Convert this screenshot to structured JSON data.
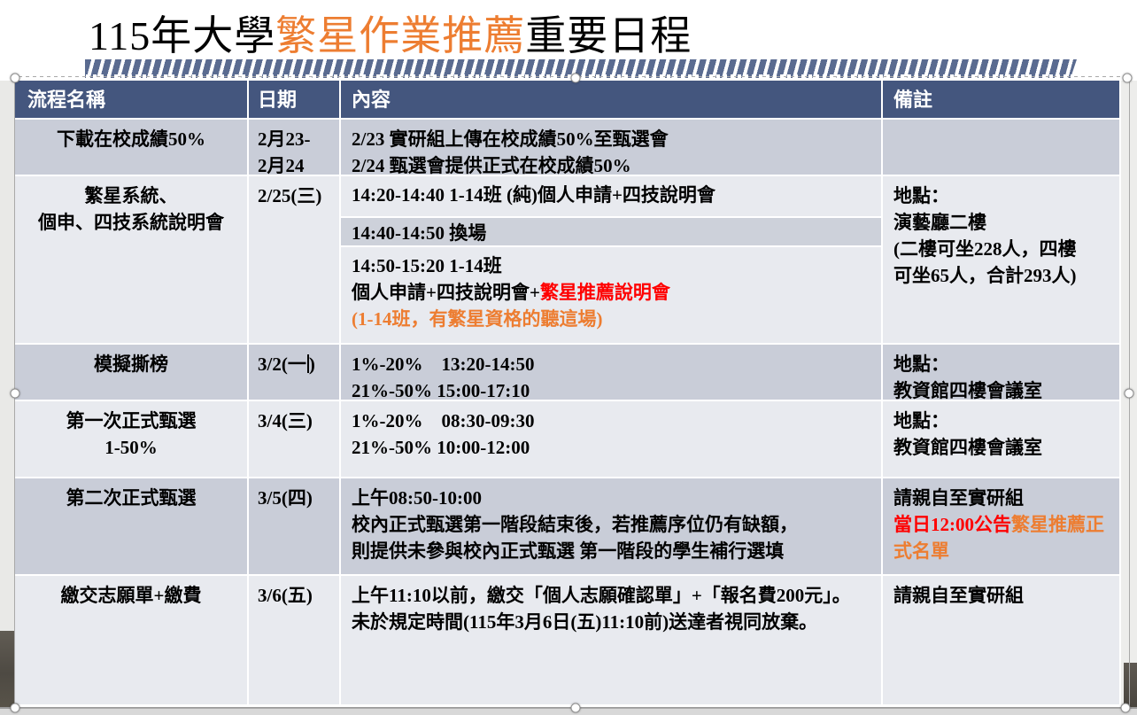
{
  "title": {
    "black1": "115年大學",
    "orange": "繁星作業推薦",
    "black2": "重要日程"
  },
  "colors": {
    "header_bg": "#44567E",
    "band_dark": "#C9CDD8",
    "band_light": "#E8EAEF",
    "accent_orange": "#ED7D31",
    "accent_red": "#FF0000",
    "ribbon_stripe": "#5A6B90"
  },
  "table": {
    "headers": [
      "流程名稱",
      "日期",
      "內容",
      "備註"
    ],
    "rows": [
      {
        "name": "下載在校成績50%",
        "date_l1": "2月23-",
        "date_l2": "2月24",
        "c_l1": "2/23 實研組上傳在校成績50%至甄選會",
        "c_l2": "2/24 甄選會提供正式在校成績50%",
        "note": ""
      },
      {
        "name_l1": "繁星系統、",
        "name_l2": "個申、四技系統說明會",
        "date": "2/25(三)",
        "sub1": "14:20-14:40 1-14班 (純)個人申請+四技說明會",
        "sub2": "14:40-14:50 換場",
        "sub3_l1": "14:50-15:20 1-14班",
        "sub3_l2_black": "個人申請+四技說明會+",
        "sub3_l2_red": "繁星推薦說明會",
        "sub3_l3_orange": "(1-14班，有繁星資格的聽這場)",
        "note_l1": "地點：",
        "note_l2": "演藝廳二樓",
        "note_l3": "(二樓可坐228人，四樓",
        "note_l4": "可坐65人，合計293人)"
      },
      {
        "name": "模擬撕榜",
        "date_pre": "3/2(一",
        "date_post": ")",
        "c_l1": "1%-20%　13:20-14:50",
        "c_l2": "21%-50% 15:00-17:10",
        "note_l1": "地點：",
        "note_l2": "教資館四樓會議室"
      },
      {
        "name_l1": "第一次正式甄選",
        "name_l2": "1-50%",
        "date": "3/4(三)",
        "c_l1": "1%-20%　08:30-09:30",
        "c_l2": "21%-50% 10:00-12:00",
        "note_l1": "地點：",
        "note_l2": "教資館四樓會議室"
      },
      {
        "name": "第二次正式甄選",
        "date": "3/5(四)",
        "c_l1": "上午08:50-10:00",
        "c_l2": "校內正式甄選第一階段結束後，若推薦序位仍有缺額，",
        "c_l3": "則提供未參與校內正式甄選 第一階段的學生補行選填",
        "note_l1": "請親自至實研組",
        "note_red": "當日12:00公告",
        "note_orange": "繁星推薦正式名單"
      },
      {
        "name": "繳交志願單+繳費",
        "date": "3/6(五)",
        "c_l1": "上午11:10以前，繳交「個人志願確認單」+「報名費200元」。",
        "c_l2": "未於規定時間(115年3月6日(五)11:10前)送達者視同放棄。",
        "note": "請親自至實研組"
      }
    ]
  }
}
